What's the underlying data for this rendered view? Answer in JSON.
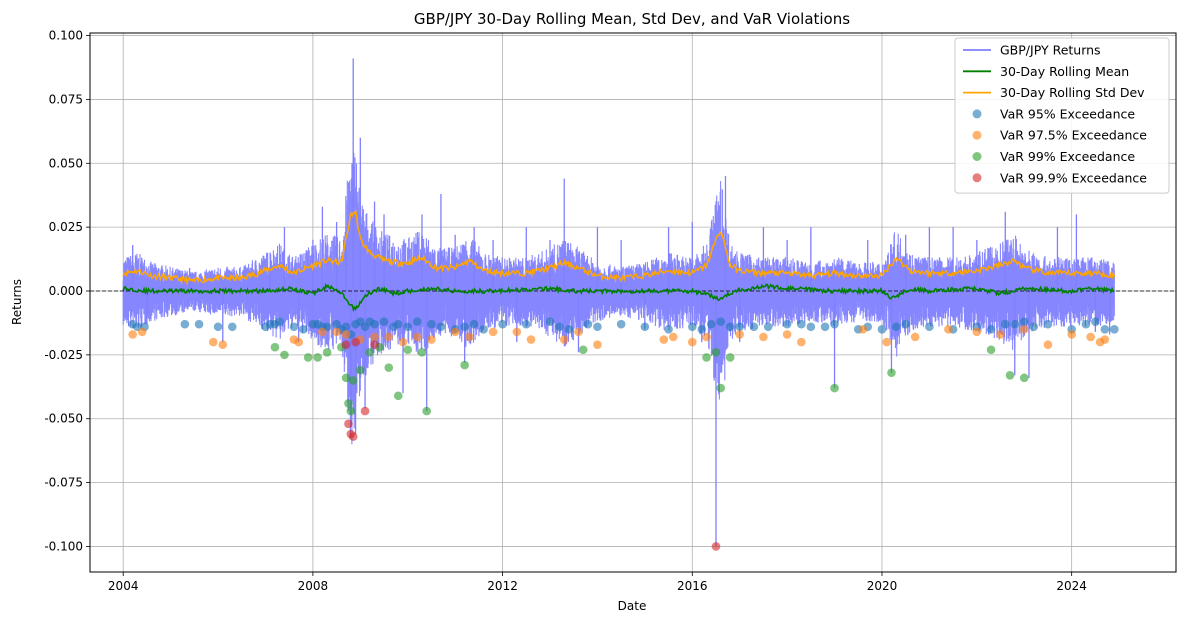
{
  "chart_data": {
    "type": "line",
    "title": "GBP/JPY 30-Day Rolling Mean, Std Dev, and VaR Violations",
    "xlabel": "Date",
    "ylabel": "Returns",
    "xlim": [
      2003.3,
      2026.2
    ],
    "ylim": [
      -0.11,
      0.101
    ],
    "x_ticks": [
      2004,
      2008,
      2012,
      2016,
      2020,
      2024
    ],
    "y_ticks": [
      -0.1,
      -0.075,
      -0.05,
      -0.025,
      0.0,
      0.025,
      0.05,
      0.075,
      0.1
    ],
    "grid": true,
    "zero_line": 0.0,
    "legend_position": "upper-right",
    "series_colors": {
      "returns": "#7f7fff",
      "mean": "#008000",
      "std": "#ffa500",
      "var95": "#1f77b4",
      "var975": "#ff7f0e",
      "var99": "#2ca02c",
      "var999": "#d62728"
    },
    "legend": [
      {
        "key": "returns",
        "label": "GBP/JPY Returns",
        "kind": "line"
      },
      {
        "key": "mean",
        "label": "30-Day Rolling Mean",
        "kind": "line"
      },
      {
        "key": "std",
        "label": "30-Day Rolling Std Dev",
        "kind": "line"
      },
      {
        "key": "var95",
        "label": "VaR 95% Exceedance",
        "kind": "marker"
      },
      {
        "key": "var975",
        "label": "VaR 97.5% Exceedance",
        "kind": "marker"
      },
      {
        "key": "var99",
        "label": "VaR 99% Exceedance",
        "kind": "marker"
      },
      {
        "key": "var999",
        "label": "VaR 99.9% Exceedance",
        "kind": "marker"
      }
    ],
    "rolling_std": {
      "x": [
        2004.0,
        2004.3,
        2004.6,
        2005.0,
        2005.5,
        2006.0,
        2006.5,
        2007.0,
        2007.3,
        2007.6,
        2008.0,
        2008.3,
        2008.6,
        2008.8,
        2008.9,
        2009.0,
        2009.2,
        2009.5,
        2009.8,
        2010.0,
        2010.3,
        2010.6,
        2011.0,
        2011.3,
        2011.6,
        2012.0,
        2012.5,
        2013.0,
        2013.3,
        2013.6,
        2014.0,
        2014.5,
        2015.0,
        2015.5,
        2016.0,
        2016.3,
        2016.5,
        2016.6,
        2016.8,
        2017.0,
        2017.5,
        2018.0,
        2018.5,
        2019.0,
        2019.5,
        2020.0,
        2020.3,
        2020.6,
        2021.0,
        2021.5,
        2022.0,
        2022.5,
        2022.8,
        2023.0,
        2023.5,
        2024.0,
        2024.3,
        2024.6,
        2024.9
      ],
      "y": [
        0.007,
        0.008,
        0.006,
        0.005,
        0.004,
        0.005,
        0.005,
        0.008,
        0.01,
        0.007,
        0.01,
        0.012,
        0.011,
        0.03,
        0.031,
        0.02,
        0.015,
        0.012,
        0.011,
        0.011,
        0.013,
        0.009,
        0.009,
        0.012,
        0.008,
        0.007,
        0.007,
        0.009,
        0.011,
        0.009,
        0.006,
        0.005,
        0.006,
        0.008,
        0.007,
        0.01,
        0.02,
        0.024,
        0.01,
        0.008,
        0.007,
        0.007,
        0.006,
        0.007,
        0.006,
        0.006,
        0.013,
        0.008,
        0.007,
        0.007,
        0.008,
        0.01,
        0.012,
        0.009,
        0.007,
        0.007,
        0.007,
        0.007,
        0.006
      ]
    },
    "rolling_mean": {
      "x": [
        2004.0,
        2004.5,
        2005.0,
        2006.0,
        2007.0,
        2007.5,
        2008.0,
        2008.3,
        2008.6,
        2008.8,
        2008.9,
        2009.1,
        2009.4,
        2009.7,
        2010.0,
        2010.5,
        2011.0,
        2012.0,
        2013.0,
        2013.5,
        2014.0,
        2015.0,
        2016.0,
        2016.4,
        2016.6,
        2016.9,
        2017.5,
        2018.0,
        2019.0,
        2020.0,
        2020.2,
        2020.6,
        2021.0,
        2022.0,
        2022.5,
        2023.0,
        2024.0,
        2024.5,
        2024.9
      ],
      "y": [
        0.001,
        0.0,
        0.0,
        0.0,
        0.0,
        0.001,
        -0.001,
        0.002,
        -0.001,
        -0.006,
        -0.007,
        -0.002,
        0.001,
        -0.001,
        0.0,
        0.001,
        0.0,
        0.0,
        0.001,
        0.0,
        0.0,
        0.0,
        0.0,
        -0.002,
        -0.003,
        0.0,
        0.002,
        0.001,
        0.0,
        0.0,
        -0.003,
        0.001,
        0.0,
        0.001,
        -0.001,
        0.001,
        0.0,
        0.001,
        0.0
      ]
    },
    "return_spikes": {
      "x": [
        2004.2,
        2004.5,
        2005.4,
        2006.1,
        2007.1,
        2007.4,
        2007.7,
        2008.0,
        2008.2,
        2008.5,
        2008.7,
        2008.8,
        2008.85,
        2008.9,
        2009.0,
        2009.1,
        2009.3,
        2009.5,
        2009.9,
        2010.3,
        2010.4,
        2010.7,
        2011.0,
        2011.2,
        2011.4,
        2011.8,
        2012.3,
        2012.5,
        2013.0,
        2013.3,
        2013.6,
        2014.0,
        2014.5,
        2015.0,
        2015.5,
        2016.0,
        2016.2,
        2016.5,
        2016.7,
        2017.0,
        2017.5,
        2018.0,
        2018.5,
        2019.0,
        2019.7,
        2020.2,
        2020.5,
        2021.0,
        2021.5,
        2022.0,
        2022.6,
        2022.8,
        2023.1,
        2023.7,
        2024.1,
        2024.5,
        2024.8
      ],
      "y": [
        0.018,
        -0.013,
        0.009,
        -0.02,
        0.015,
        0.025,
        -0.02,
        0.02,
        0.033,
        0.027,
        0.025,
        -0.045,
        0.091,
        -0.056,
        0.06,
        -0.046,
        0.035,
        0.03,
        -0.04,
        0.03,
        -0.047,
        0.038,
        0.022,
        -0.028,
        0.025,
        0.02,
        -0.02,
        0.025,
        0.02,
        0.044,
        -0.024,
        0.025,
        0.02,
        -0.015,
        0.025,
        0.027,
        -0.02,
        -0.1,
        0.045,
        -0.02,
        0.025,
        0.02,
        0.025,
        -0.038,
        0.02,
        -0.032,
        0.022,
        0.025,
        0.025,
        0.02,
        0.031,
        -0.033,
        -0.034,
        0.025,
        0.03,
        -0.016,
        -0.017
      ]
    },
    "var_95": {
      "x": [
        2004.2,
        2004.3,
        2004.45,
        2005.3,
        2005.6,
        2006.0,
        2006.3,
        2007.0,
        2007.1,
        2007.2,
        2007.3,
        2007.6,
        2007.8,
        2008.0,
        2008.1,
        2008.2,
        2008.3,
        2008.5,
        2008.6,
        2008.7,
        2008.8,
        2008.9,
        2009.0,
        2009.1,
        2009.2,
        2009.3,
        2009.5,
        2009.7,
        2009.8,
        2010.0,
        2010.2,
        2010.5,
        2010.7,
        2011.0,
        2011.2,
        2011.4,
        2011.6,
        2012.0,
        2012.5,
        2013.0,
        2013.2,
        2013.4,
        2013.8,
        2014.0,
        2014.5,
        2015.0,
        2015.5,
        2016.0,
        2016.2,
        2016.4,
        2016.6,
        2016.8,
        2017.0,
        2017.3,
        2017.6,
        2018.0,
        2018.3,
        2018.5,
        2018.8,
        2019.0,
        2019.5,
        2019.7,
        2020.0,
        2020.3,
        2020.5,
        2021.0,
        2021.5,
        2022.0,
        2022.3,
        2022.6,
        2022.8,
        2023.0,
        2023.2,
        2023.5,
        2024.0,
        2024.3,
        2024.5,
        2024.7,
        2024.9
      ],
      "y": [
        -0.013,
        -0.014,
        -0.014,
        -0.013,
        -0.013,
        -0.014,
        -0.014,
        -0.014,
        -0.013,
        -0.013,
        -0.012,
        -0.014,
        -0.015,
        -0.013,
        -0.013,
        -0.014,
        -0.014,
        -0.013,
        -0.015,
        -0.014,
        -0.017,
        -0.013,
        -0.012,
        -0.014,
        -0.012,
        -0.013,
        -0.012,
        -0.014,
        -0.013,
        -0.014,
        -0.012,
        -0.013,
        -0.014,
        -0.015,
        -0.014,
        -0.013,
        -0.015,
        -0.013,
        -0.013,
        -0.012,
        -0.014,
        -0.015,
        -0.013,
        -0.014,
        -0.013,
        -0.014,
        -0.015,
        -0.014,
        -0.015,
        -0.013,
        -0.012,
        -0.014,
        -0.014,
        -0.014,
        -0.014,
        -0.013,
        -0.013,
        -0.014,
        -0.014,
        -0.013,
        -0.015,
        -0.014,
        -0.015,
        -0.014,
        -0.013,
        -0.014,
        -0.015,
        -0.014,
        -0.015,
        -0.013,
        -0.013,
        -0.012,
        -0.014,
        -0.013,
        -0.015,
        -0.013,
        -0.012,
        -0.015,
        -0.015
      ]
    },
    "var_975": {
      "x": [
        2004.2,
        2004.4,
        2005.9,
        2006.1,
        2007.6,
        2007.7,
        2008.2,
        2008.5,
        2008.7,
        2009.0,
        2009.3,
        2009.6,
        2009.9,
        2010.2,
        2010.5,
        2011.0,
        2011.3,
        2011.8,
        2012.3,
        2012.6,
        2013.3,
        2013.6,
        2014.0,
        2015.4,
        2015.6,
        2016.0,
        2016.3,
        2017.0,
        2017.5,
        2018.0,
        2018.3,
        2019.6,
        2020.1,
        2020.7,
        2021.4,
        2022.0,
        2022.5,
        2023.0,
        2023.5,
        2024.0,
        2024.4,
        2024.6,
        2024.7
      ],
      "y": [
        -0.017,
        -0.016,
        -0.02,
        -0.021,
        -0.019,
        -0.02,
        -0.016,
        -0.016,
        -0.017,
        -0.019,
        -0.018,
        -0.018,
        -0.02,
        -0.018,
        -0.019,
        -0.016,
        -0.018,
        -0.016,
        -0.016,
        -0.019,
        -0.019,
        -0.016,
        -0.021,
        -0.019,
        -0.018,
        -0.02,
        -0.018,
        -0.017,
        -0.018,
        -0.017,
        -0.02,
        -0.015,
        -0.02,
        -0.018,
        -0.015,
        -0.016,
        -0.017,
        -0.015,
        -0.021,
        -0.017,
        -0.018,
        -0.02,
        -0.019
      ],
      "_note": ""
    },
    "var_99": {
      "x": [
        2007.2,
        2007.4,
        2007.9,
        2008.1,
        2008.3,
        2008.6,
        2008.7,
        2008.75,
        2008.8,
        2008.85,
        2009.0,
        2009.2,
        2009.4,
        2009.6,
        2009.8,
        2010.0,
        2010.3,
        2010.4,
        2011.2,
        2013.7,
        2016.3,
        2016.5,
        2016.6,
        2016.8,
        2019.0,
        2020.2,
        2022.3,
        2022.7,
        2023.0
      ],
      "y": [
        -0.022,
        -0.025,
        -0.026,
        -0.026,
        -0.024,
        -0.022,
        -0.034,
        -0.044,
        -0.047,
        -0.035,
        -0.031,
        -0.024,
        -0.022,
        -0.03,
        -0.041,
        -0.023,
        -0.024,
        -0.047,
        -0.029,
        -0.023,
        -0.026,
        -0.024,
        -0.038,
        -0.026,
        -0.038,
        -0.032,
        -0.023,
        -0.033,
        -0.034
      ]
    },
    "var_999": {
      "x": [
        2008.7,
        2008.75,
        2008.8,
        2008.85,
        2008.9,
        2009.1,
        2009.3,
        2016.5
      ],
      "y": [
        -0.021,
        -0.052,
        -0.056,
        -0.057,
        -0.02,
        -0.047,
        -0.021,
        -0.1
      ]
    }
  }
}
